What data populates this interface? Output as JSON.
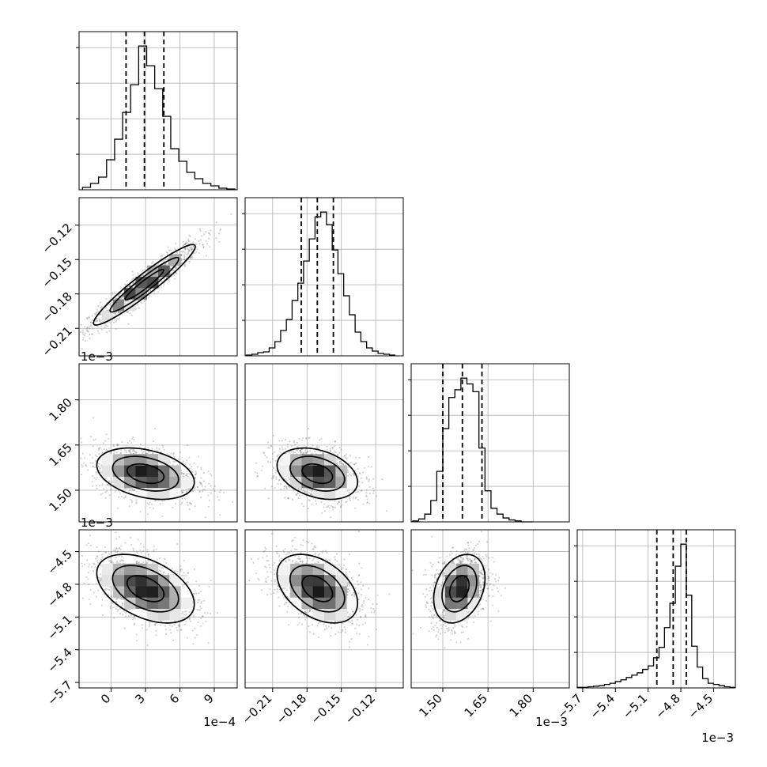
{
  "chart_data": {
    "type": "corner",
    "colors": {
      "line": "#000000",
      "grid": "#b0b0b0",
      "density_max": "#000000",
      "scatter": "#555555"
    },
    "grid": true,
    "quantile_lines": "dashed",
    "parameters": [
      {
        "range": [
          -2.8,
          11.0
        ],
        "ticks": [
          0,
          3,
          6,
          9
        ],
        "tick_labels": [
          "0",
          "3",
          "6",
          "9"
        ],
        "offset_label": "1e−4",
        "quantiles": [
          1.3,
          2.9,
          4.6
        ],
        "hist_bins": [
          -2.5,
          -1.8,
          -1.1,
          -0.4,
          0.3,
          1.0,
          1.7,
          2.4,
          3.1,
          3.8,
          4.5,
          5.2,
          5.9,
          6.6,
          7.3,
          8.0,
          8.7,
          9.4,
          10.1,
          10.8
        ],
        "hist_counts": [
          3,
          8,
          16,
          38,
          64,
          98,
          133,
          182,
          157,
          128,
          93,
          52,
          36,
          22,
          14,
          8,
          5,
          2,
          1,
          0
        ]
      },
      {
        "range": [
          -0.234,
          -0.096
        ],
        "ticks": [
          -0.21,
          -0.18,
          -0.15,
          -0.12
        ],
        "tick_labels": [
          "−0.21",
          "−0.18",
          "−0.15",
          "−0.12"
        ],
        "quantiles": [
          -0.185,
          -0.171,
          -0.157
        ],
        "hist_bins": [
          -0.233,
          -0.228,
          -0.223,
          -0.218,
          -0.213,
          -0.208,
          -0.203,
          -0.198,
          -0.193,
          -0.188,
          -0.183,
          -0.178,
          -0.173,
          -0.168,
          -0.163,
          -0.158,
          -0.153,
          -0.148,
          -0.143,
          -0.138,
          -0.133,
          -0.128,
          -0.123,
          -0.118,
          -0.113,
          -0.108,
          -0.103
        ],
        "hist_counts": [
          1,
          2,
          4,
          5,
          10,
          18,
          32,
          46,
          70,
          92,
          120,
          148,
          176,
          182,
          166,
          134,
          104,
          76,
          52,
          30,
          18,
          10,
          6,
          3,
          2,
          1
        ]
      },
      {
        "range": [
          1.395,
          1.92
        ],
        "ticks": [
          1.5,
          1.65,
          1.8
        ],
        "tick_labels": [
          "1.50",
          "1.65",
          "1.80"
        ],
        "offset_label": "1e−3",
        "quantiles": [
          1.5,
          1.565,
          1.63
        ],
        "hist_bins": [
          1.4,
          1.42,
          1.44,
          1.46,
          1.48,
          1.5,
          1.52,
          1.54,
          1.56,
          1.58,
          1.6,
          1.62,
          1.64,
          1.66,
          1.68,
          1.7,
          1.72,
          1.74,
          1.76,
          1.78,
          1.8
        ],
        "hist_counts": [
          1,
          3,
          8,
          22,
          52,
          96,
          128,
          136,
          148,
          142,
          134,
          76,
          32,
          14,
          8,
          4,
          2,
          1,
          0,
          0
        ]
      },
      {
        "range": [
          -5.75,
          -4.3
        ],
        "ticks": [
          -5.7,
          -5.4,
          -5.1,
          -4.8,
          -4.5
        ],
        "tick_labels": [
          "−5.7",
          "−5.4",
          "−5.1",
          "−4.8",
          "−4.5"
        ],
        "offset_label": "1e−3",
        "quantiles": [
          -5.02,
          -4.87,
          -4.75
        ],
        "hist_bins": [
          -5.75,
          -5.7,
          -5.65,
          -5.6,
          -5.55,
          -5.5,
          -5.45,
          -5.4,
          -5.35,
          -5.3,
          -5.25,
          -5.2,
          -5.15,
          -5.1,
          -5.05,
          -5.0,
          -4.95,
          -4.9,
          -4.85,
          -4.8,
          -4.75,
          -4.7,
          -4.65,
          -4.6,
          -4.55,
          -4.5,
          -4.45,
          -4.4,
          -4.35,
          -4.3
        ],
        "hist_counts": [
          1,
          1,
          2,
          3,
          4,
          6,
          8,
          11,
          14,
          18,
          22,
          26,
          32,
          38,
          52,
          70,
          104,
          146,
          210,
          248,
          160,
          72,
          36,
          16,
          8,
          6,
          4,
          2,
          1
        ]
      }
    ],
    "pairs": [
      {
        "x": 0,
        "y": 1,
        "mean": [
          2.9,
          -0.172
        ],
        "sd": [
          2.4,
          0.019
        ],
        "rho": 0.95
      },
      {
        "x": 0,
        "y": 2,
        "mean": [
          3.0,
          1.555
        ],
        "sd": [
          2.3,
          0.046
        ],
        "rho": -0.33
      },
      {
        "x": 1,
        "y": 2,
        "mean": [
          -0.171,
          1.555
        ],
        "sd": [
          0.019,
          0.046
        ],
        "rho": -0.33
      },
      {
        "x": 0,
        "y": 3,
        "mean": [
          3.0,
          -4.84
        ],
        "sd": [
          2.3,
          0.17
        ],
        "rho": -0.45
      },
      {
        "x": 1,
        "y": 3,
        "mean": [
          -0.171,
          -4.84
        ],
        "sd": [
          0.019,
          0.17
        ],
        "rho": -0.42
      },
      {
        "x": 2,
        "y": 3,
        "mean": [
          1.555,
          -4.84
        ],
        "sd": [
          0.046,
          0.17
        ],
        "rho": 0.3
      }
    ]
  }
}
